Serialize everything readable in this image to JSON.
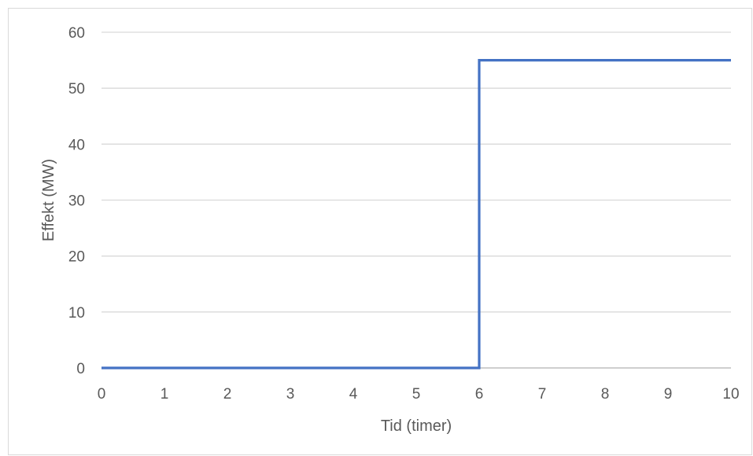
{
  "chart_data": {
    "type": "line",
    "title": "",
    "xlabel": "Tid (timer)",
    "ylabel": "Effekt (MW)",
    "xlim": [
      0,
      10
    ],
    "ylim": [
      0,
      60
    ],
    "x_ticks": [
      "0",
      "1",
      "2",
      "3",
      "4",
      "5",
      "6",
      "7",
      "8",
      "9",
      "10"
    ],
    "y_ticks": [
      "0",
      "10",
      "20",
      "30",
      "40",
      "50",
      "60"
    ],
    "grid": true,
    "legend": "none",
    "series": [
      {
        "color": "#4472c4",
        "points": [
          {
            "x": 0,
            "y": 0
          },
          {
            "x": 6,
            "y": 0
          },
          {
            "x": 6,
            "y": 55
          },
          {
            "x": 10,
            "y": 55
          }
        ]
      }
    ]
  },
  "colors": {
    "grid": "#d9d9d9",
    "axis": "#bfbfbf",
    "text": "#595959"
  }
}
